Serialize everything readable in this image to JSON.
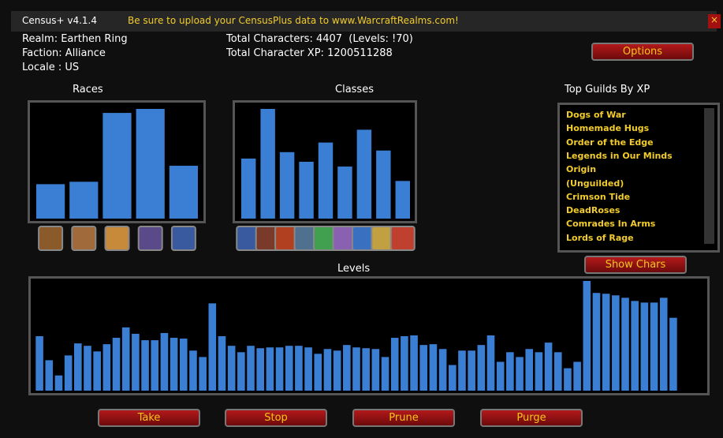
{
  "header": {
    "title": "Census+ v4.1.4",
    "message": "Be sure to upload your CensusPlus data to www.WarcraftRealms.com!"
  },
  "info": {
    "realm": "Realm: Earthen Ring",
    "faction": "Faction: Alliance",
    "locale": "Locale : US",
    "total_characters": "Total Characters: 4407  (Levels: !70)",
    "total_xp": "Total Character XP: 1200511288"
  },
  "buttons": {
    "options": "Options",
    "show_chars": "Show Chars",
    "take": "Take",
    "stop": "Stop",
    "prune": "Prune",
    "purge": "Purge"
  },
  "races": {
    "title": "Races",
    "color": "#3b7fd4",
    "values": [
      43,
      46,
      132,
      137,
      66
    ]
  },
  "classes": {
    "title": "Classes",
    "color": "#3b7fd4",
    "values": [
      75,
      137,
      83,
      71,
      95,
      65,
      111,
      85,
      47
    ]
  },
  "guilds": {
    "title": "Top Guilds By XP",
    "items": [
      "Dogs of War",
      "Homemade Hugs",
      "Order of the Edge",
      "Legends in Our Minds",
      "Origin",
      "(Unguilded)",
      "Crimson Tide",
      "DeadRoses",
      "Comrades In Arms",
      "Lords of Rage"
    ]
  },
  "levels": {
    "title": "Levels",
    "color": "#3b7fd4",
    "values": [
      68,
      38,
      19,
      44,
      59,
      56,
      49,
      58,
      66,
      79,
      71,
      63,
      63,
      72,
      66,
      65,
      50,
      42,
      109,
      68,
      56,
      48,
      56,
      53,
      54,
      54,
      56,
      56,
      54,
      46,
      52,
      50,
      57,
      54,
      53,
      52,
      42,
      66,
      68,
      69,
      57,
      58,
      52,
      32,
      50,
      50,
      57,
      69,
      36,
      48,
      42,
      52,
      48,
      60,
      48,
      28,
      36,
      137,
      122,
      121,
      119,
      116,
      112,
      110,
      110,
      116,
      91
    ]
  }
}
